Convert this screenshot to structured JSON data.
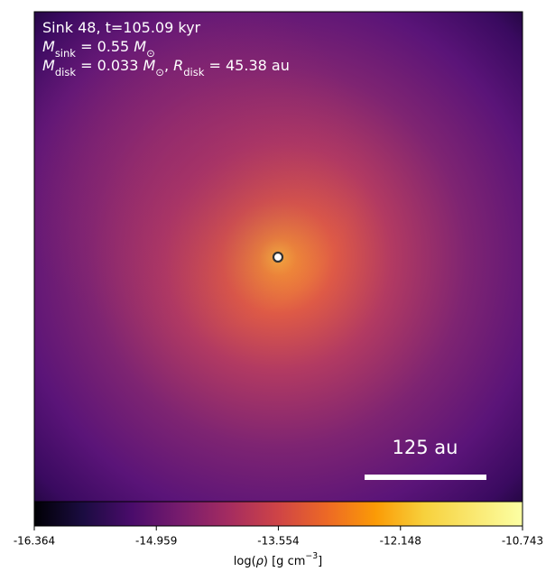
{
  "panel": {
    "annotations": [
      [
        {
          "text": "Sink 48, t=105.09 kyr"
        }
      ],
      [
        {
          "text": "M",
          "italic": true
        },
        {
          "text": "sink",
          "sub": true
        },
        {
          "text": " = 0.55 "
        },
        {
          "text": "M",
          "italic": true
        },
        {
          "text": "⊙",
          "sub": true
        }
      ],
      [
        {
          "text": "M",
          "italic": true
        },
        {
          "text": "disk",
          "sub": true
        },
        {
          "text": " = 0.033 "
        },
        {
          "text": "M",
          "italic": true
        },
        {
          "text": "⊙",
          "sub": true
        },
        {
          "text": ", "
        },
        {
          "text": "R",
          "italic": true
        },
        {
          "text": "disk",
          "sub": true
        },
        {
          "text": " = 45.38 au"
        }
      ]
    ],
    "scale_bar": "125 au"
  },
  "colorbar": {
    "lim": [
      -16.364,
      -10.743
    ],
    "ticks": [
      -16.364,
      -14.959,
      -13.554,
      -12.148,
      -10.743
    ],
    "label": [
      {
        "text": "log("
      },
      {
        "text": "ρ",
        "italic": true
      },
      {
        "text": ") [g cm"
      },
      {
        "text": "−3",
        "sup": true
      },
      {
        "text": "]"
      }
    ]
  }
}
